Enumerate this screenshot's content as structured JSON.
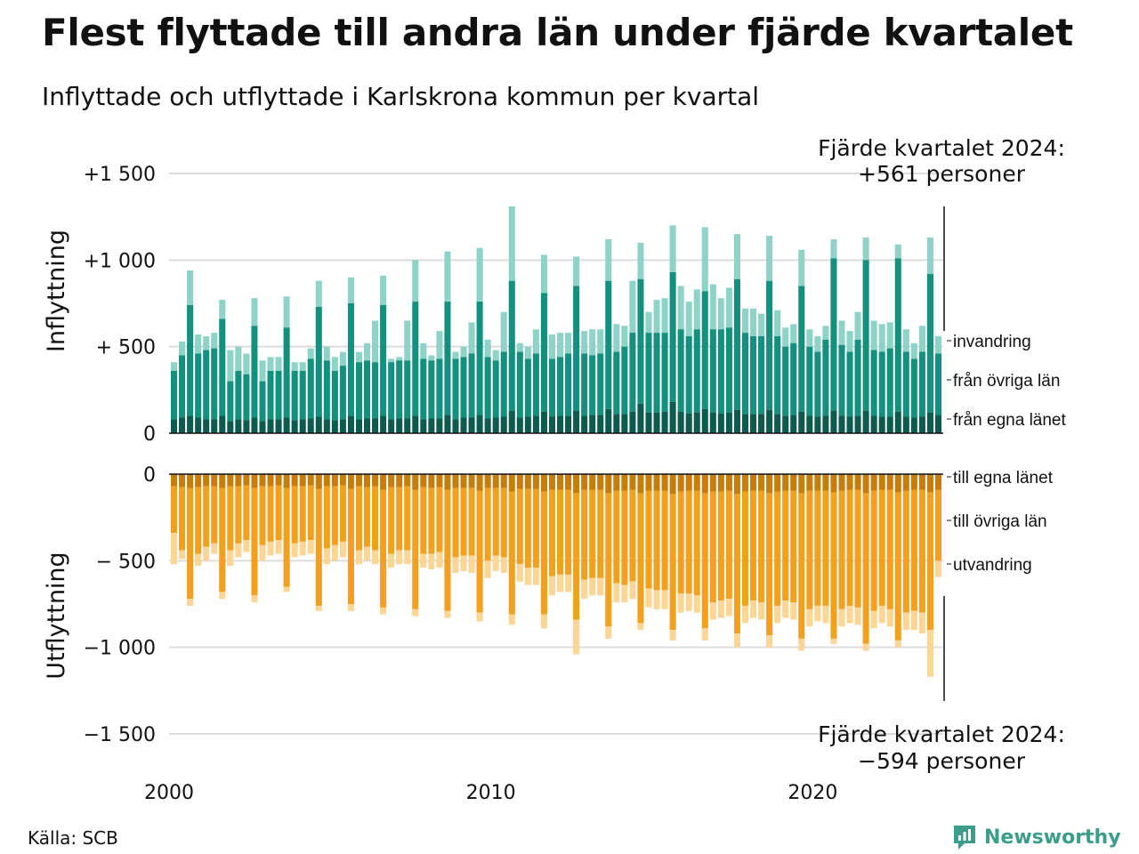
{
  "header": {
    "title": "Flest flyttade till andra län under fjärde kvartalet",
    "subtitle": "Inflyttade och utflyttade i Karlskrona kommun per kvartal"
  },
  "footer": {
    "source": "Källa: SCB",
    "brand": "Newsworthy"
  },
  "colors": {
    "in_egna": "#0e5a4e",
    "in_ovriga": "#14907f",
    "in_invandring": "#8fd3c8",
    "out_egna": "#c77d0a",
    "out_ovriga": "#f3a01e",
    "out_utvandring": "#fbd696",
    "grid": "#dddddd",
    "brand": "#3a9e8a"
  },
  "chart_data": {
    "type": "bar",
    "stacked": true,
    "x_start": "2000 Q1",
    "x_ticks": [
      "2000",
      "2010",
      "2020"
    ],
    "y_ticks": [
      "+1 500",
      "+1 000",
      "+  500",
      "0",
      "0",
      "−  500",
      "−1 000",
      "−1 500"
    ],
    "panels": {
      "in": {
        "ylabel": "Inflyttning",
        "ylim": [
          0,
          1500
        ],
        "series_labels": [
          "invandring",
          "från övriga län",
          "från egna länet"
        ],
        "annotation": [
          "Fjärde kvartalet 2024:",
          "+561 personer"
        ]
      },
      "out": {
        "ylabel": "Utflyttning",
        "ylim": [
          -1500,
          0
        ],
        "series_labels": [
          "till egna länet",
          "till övriga län",
          "utvandring"
        ],
        "annotation": [
          "Fjärde kvartalet 2024:",
          "−594 personer"
        ]
      }
    },
    "inflyttning_total": [
      410,
      530,
      940,
      570,
      560,
      580,
      770,
      480,
      500,
      460,
      780,
      420,
      440,
      440,
      790,
      410,
      410,
      490,
      880,
      500,
      440,
      470,
      900,
      470,
      520,
      650,
      910,
      430,
      440,
      650,
      1000,
      520,
      450,
      590,
      1050,
      470,
      500,
      640,
      1070,
      540,
      480,
      700,
      1310,
      520,
      500,
      600,
      1030,
      570,
      580,
      580,
      1020,
      590,
      600,
      600,
      1120,
      630,
      620,
      880,
      1100,
      700,
      770,
      780,
      1200,
      850,
      760,
      830,
      1190,
      860,
      780,
      840,
      1150,
      720,
      720,
      690,
      1140,
      710,
      610,
      630,
      1060,
      600,
      560,
      620,
      1120,
      650,
      590,
      700,
      1130,
      650,
      630,
      640,
      1090,
      600,
      520,
      620,
      1130,
      561
    ],
    "inflyttning_ovriga": [
      360,
      450,
      740,
      460,
      480,
      490,
      660,
      300,
      360,
      340,
      620,
      300,
      360,
      360,
      610,
      360,
      360,
      430,
      730,
      420,
      360,
      390,
      750,
      410,
      420,
      410,
      740,
      410,
      420,
      420,
      760,
      430,
      420,
      430,
      760,
      430,
      440,
      460,
      760,
      440,
      420,
      470,
      880,
      470,
      430,
      460,
      810,
      430,
      440,
      460,
      850,
      460,
      450,
      460,
      880,
      470,
      500,
      580,
      890,
      580,
      580,
      580,
      930,
      600,
      560,
      600,
      820,
      600,
      600,
      610,
      890,
      580,
      560,
      560,
      880,
      560,
      500,
      520,
      850,
      500,
      470,
      540,
      1010,
      510,
      470,
      540,
      1000,
      480,
      470,
      490,
      1010,
      470,
      430,
      470,
      920,
      460
    ],
    "inflyttning_egna": [
      80,
      90,
      100,
      90,
      80,
      80,
      100,
      70,
      80,
      75,
      90,
      70,
      80,
      80,
      90,
      75,
      80,
      85,
      95,
      80,
      75,
      80,
      100,
      80,
      85,
      85,
      100,
      80,
      85,
      85,
      100,
      80,
      85,
      85,
      105,
      80,
      90,
      90,
      105,
      85,
      90,
      95,
      130,
      90,
      95,
      100,
      125,
      95,
      100,
      100,
      130,
      100,
      105,
      105,
      140,
      110,
      110,
      125,
      170,
      120,
      120,
      125,
      180,
      125,
      115,
      120,
      140,
      120,
      115,
      120,
      135,
      110,
      110,
      110,
      135,
      110,
      100,
      105,
      125,
      100,
      95,
      100,
      130,
      100,
      95,
      100,
      130,
      100,
      95,
      95,
      125,
      95,
      90,
      95,
      120,
      105
    ],
    "utflyttning_total": [
      -520,
      -490,
      -760,
      -530,
      -500,
      -460,
      -720,
      -530,
      -480,
      -450,
      -740,
      -500,
      -470,
      -460,
      -680,
      -480,
      -470,
      -460,
      -790,
      -520,
      -500,
      -480,
      -790,
      -520,
      -500,
      -520,
      -810,
      -540,
      -520,
      -520,
      -820,
      -540,
      -550,
      -540,
      -830,
      -570,
      -560,
      -570,
      -850,
      -600,
      -560,
      -570,
      -870,
      -620,
      -640,
      -640,
      -890,
      -700,
      -680,
      -680,
      -1040,
      -720,
      -700,
      -700,
      -950,
      -740,
      -740,
      -720,
      -900,
      -770,
      -780,
      -780,
      -960,
      -800,
      -790,
      -800,
      -960,
      -840,
      -830,
      -820,
      -1000,
      -860,
      -830,
      -840,
      -1000,
      -860,
      -830,
      -840,
      -1020,
      -880,
      -850,
      -860,
      -980,
      -880,
      -860,
      -870,
      -1020,
      -890,
      -860,
      -880,
      -1000,
      -900,
      -900,
      -920,
      -1170,
      -594
    ],
    "utflyttning_ovriga": [
      -340,
      -440,
      -720,
      -460,
      -420,
      -400,
      -680,
      -440,
      -400,
      -380,
      -700,
      -410,
      -390,
      -380,
      -650,
      -400,
      -390,
      -380,
      -760,
      -430,
      -410,
      -390,
      -750,
      -440,
      -420,
      -440,
      -770,
      -460,
      -440,
      -440,
      -780,
      -460,
      -460,
      -450,
      -790,
      -480,
      -470,
      -470,
      -800,
      -500,
      -470,
      -480,
      -810,
      -520,
      -540,
      -540,
      -810,
      -590,
      -580,
      -580,
      -840,
      -610,
      -600,
      -600,
      -880,
      -630,
      -640,
      -620,
      -860,
      -660,
      -670,
      -670,
      -900,
      -690,
      -690,
      -700,
      -890,
      -740,
      -730,
      -720,
      -920,
      -760,
      -730,
      -740,
      -930,
      -760,
      -730,
      -740,
      -950,
      -780,
      -760,
      -760,
      -950,
      -780,
      -760,
      -770,
      -980,
      -790,
      -760,
      -780,
      -960,
      -800,
      -790,
      -800,
      -900,
      -500
    ],
    "utflyttning_egna": [
      -70,
      -75,
      -80,
      -75,
      -70,
      -70,
      -80,
      -70,
      -70,
      -65,
      -80,
      -70,
      -70,
      -65,
      -80,
      -70,
      -70,
      -65,
      -85,
      -70,
      -70,
      -65,
      -85,
      -70,
      -75,
      -70,
      -90,
      -75,
      -75,
      -70,
      -90,
      -75,
      -80,
      -75,
      -90,
      -80,
      -80,
      -80,
      -95,
      -80,
      -80,
      -80,
      -100,
      -85,
      -85,
      -85,
      -100,
      -90,
      -90,
      -90,
      -110,
      -90,
      -90,
      -90,
      -110,
      -95,
      -95,
      -90,
      -110,
      -95,
      -95,
      -95,
      -115,
      -100,
      -95,
      -95,
      -110,
      -100,
      -100,
      -95,
      -115,
      -100,
      -95,
      -95,
      -110,
      -100,
      -95,
      -95,
      -110,
      -95,
      -95,
      -95,
      -105,
      -95,
      -90,
      -90,
      -110,
      -95,
      -90,
      -90,
      -105,
      -95,
      -90,
      -90,
      -105,
      -90
    ]
  }
}
